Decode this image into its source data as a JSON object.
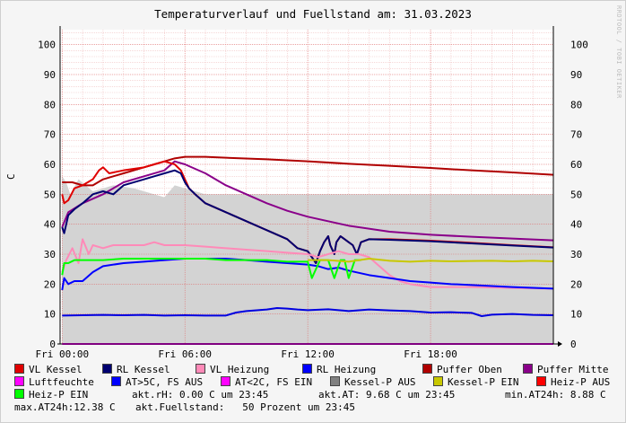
{
  "title": "Temperaturverlauf und Fuellstand am: 31.03.2023",
  "watermark": "RRDTOOL / TOBI OETIKER",
  "chart_data": {
    "type": "line",
    "title": "Temperaturverlauf und Fuellstand am: 31.03.2023",
    "ylabel": "C",
    "ylim": [
      0,
      105
    ],
    "y_ticks": [
      0,
      10,
      20,
      30,
      40,
      50,
      60,
      70,
      80,
      90,
      100
    ],
    "xlim": [
      -0.1,
      24
    ],
    "x_ticks": [
      {
        "t": 0,
        "label": "Fri 00:00"
      },
      {
        "t": 6,
        "label": "Fri 06:00"
      },
      {
        "t": 12,
        "label": "Fri 12:00"
      },
      {
        "t": 18,
        "label": "Fri 18:00"
      }
    ],
    "grid": true,
    "legend_position": "bottom",
    "area": {
      "name": "Fuellstand",
      "color": "#d3d3d3",
      "x": [
        0,
        0.2,
        0.4,
        0.8,
        1.5,
        2.5,
        3.5,
        4.5,
        5,
        5.5,
        6,
        7,
        8,
        10,
        12,
        14,
        16,
        18,
        20,
        22,
        24
      ],
      "values": [
        56,
        54,
        50,
        55,
        51,
        53,
        52,
        50,
        49,
        53,
        52,
        50,
        50,
        50,
        50,
        50,
        50,
        50,
        50,
        50,
        50
      ]
    },
    "series": [
      {
        "name": "Puffer Oben",
        "color": "#b00000",
        "x": [
          0,
          0.5,
          1,
          1.5,
          2,
          2.5,
          3,
          3.5,
          4,
          4.5,
          5,
          5.5,
          6,
          7,
          8,
          10,
          12,
          14,
          16,
          18,
          20,
          22,
          24
        ],
        "values": [
          54,
          54,
          53,
          53,
          55,
          56,
          57,
          58,
          59,
          60,
          61,
          62,
          62.5,
          62.5,
          62.2,
          61.7,
          61,
          60.2,
          59.5,
          58.8,
          58,
          57.3,
          56.5
        ]
      },
      {
        "name": "Puffer Mitte",
        "color": "#8a008a",
        "x": [
          0,
          0.3,
          1,
          2,
          3,
          4,
          5,
          5.5,
          6,
          7,
          8,
          9,
          10,
          11,
          12,
          14,
          16,
          18,
          20,
          22,
          24
        ],
        "values": [
          39,
          44,
          47,
          50,
          54,
          56,
          58,
          61,
          60,
          57,
          53,
          50,
          47,
          44.5,
          42.5,
          39.5,
          37.5,
          36.5,
          35.8,
          35.2,
          34.6
        ]
      },
      {
        "name": "VL Kessel",
        "color": "#e00000",
        "x": [
          0,
          0.1,
          0.3,
          0.6,
          1,
          1.5,
          1.8,
          2,
          2.3,
          3,
          4,
          4.5,
          5,
          5.5,
          5.8,
          6,
          6.2,
          6.5,
          7,
          8,
          9,
          10,
          11,
          11.5,
          12,
          12.2,
          12.4,
          12.6,
          12.8,
          13,
          13.1,
          13.3,
          13.4,
          13.6,
          13.8,
          14,
          14.2,
          14.4,
          14.6,
          15,
          16,
          18,
          20,
          22,
          24
        ],
        "values": [
          50,
          47,
          48,
          52,
          53,
          55,
          58,
          59,
          57,
          58,
          59,
          60,
          61,
          60,
          58,
          55,
          52,
          50,
          47,
          44,
          41,
          38,
          35,
          32,
          31,
          29,
          27,
          31,
          34,
          36,
          33,
          30,
          34,
          36,
          35,
          34,
          33,
          30,
          34,
          35,
          35,
          34.5,
          33.8,
          33,
          32.3
        ]
      },
      {
        "name": "RL Kessel",
        "color": "#000070",
        "x": [
          0,
          0.1,
          0.3,
          0.6,
          1,
          1.5,
          2,
          2.5,
          3,
          4,
          4.5,
          5,
          5.5,
          5.8,
          6,
          6.2,
          6.5,
          7,
          8,
          9,
          10,
          11,
          11.5,
          12,
          12.2,
          12.4,
          12.6,
          12.8,
          13,
          13.1,
          13.3,
          13.4,
          13.6,
          13.8,
          14,
          14.2,
          14.4,
          14.6,
          15,
          16,
          18,
          20,
          22,
          24
        ],
        "values": [
          39,
          37,
          43,
          45,
          47,
          50,
          51,
          50,
          53,
          55,
          56,
          57,
          58,
          57,
          54,
          52,
          50,
          47,
          44,
          41,
          38,
          35,
          32,
          31,
          29,
          27,
          31,
          34,
          36,
          33,
          30,
          34,
          36,
          35,
          34,
          33,
          30,
          34,
          35,
          34.8,
          34.3,
          33.6,
          32.9,
          32.2
        ]
      },
      {
        "name": "VL Heizung",
        "color": "#ff8ab8",
        "x": [
          0,
          0.2,
          0.5,
          0.8,
          1,
          1.3,
          1.5,
          2,
          2.5,
          3,
          3.5,
          4,
          4.5,
          5,
          5.5,
          6,
          7,
          8,
          9,
          10,
          11,
          12,
          12.5,
          13,
          13.5,
          14,
          14.5,
          15,
          15.5,
          16,
          16.5,
          17,
          18,
          20,
          22,
          24
        ],
        "values": [
          24,
          28,
          32,
          27,
          35,
          30,
          33,
          32,
          33,
          33,
          33,
          33,
          34,
          33,
          33,
          33,
          32.5,
          32,
          31.5,
          31,
          30.5,
          30,
          29,
          30,
          31,
          30,
          30,
          29,
          26,
          23,
          21,
          20,
          19,
          19,
          18.7,
          18.5
        ]
      },
      {
        "name": "RL Heizung",
        "color": "#0000ff",
        "x": [
          0,
          0.1,
          0.3,
          0.6,
          1,
          1.5,
          2,
          3,
          4,
          5,
          6,
          7,
          8,
          9,
          10,
          11,
          12,
          12.5,
          13,
          13.5,
          14,
          15,
          16,
          17,
          18,
          19,
          20,
          22,
          24
        ],
        "values": [
          18,
          22,
          20,
          21,
          21,
          24,
          26,
          27,
          27.5,
          28,
          28.5,
          28.5,
          28.5,
          28,
          27.5,
          27,
          26.5,
          26,
          25,
          25.5,
          24.5,
          23,
          22,
          21,
          20.5,
          20,
          19.7,
          19,
          18.5
        ]
      },
      {
        "name": "Luftfeuchte",
        "color": "#ff00ff",
        "x": [
          0,
          24
        ],
        "values": [
          0,
          0
        ]
      },
      {
        "name": "Heiz-P EIN",
        "color": "#00ff00",
        "x": [
          0,
          0.1,
          0.3,
          0.6,
          1,
          2,
          3,
          4,
          5,
          6,
          7,
          8,
          9,
          10,
          11,
          12,
          12.2,
          12.6,
          13,
          13.3,
          13.6,
          13.8,
          14,
          14.3,
          14.6
        ],
        "values": [
          23,
          27,
          27,
          28,
          28,
          28,
          28.5,
          28.5,
          28.5,
          28.5,
          28.5,
          28,
          28,
          28,
          27.5,
          27.5,
          22,
          28,
          28,
          22,
          28,
          28,
          22,
          28,
          28
        ]
      },
      {
        "name": "Kessel-P EIN",
        "color": "#c8c800",
        "x": [
          12,
          13,
          14,
          15,
          16,
          17,
          18,
          19,
          20,
          21,
          22,
          23,
          24
        ],
        "values": [
          28,
          28,
          27.5,
          28.5,
          27.8,
          27.5,
          27.8,
          27.6,
          27.7,
          27.8,
          27.6,
          27.8,
          27.6
        ]
      },
      {
        "name": "AT",
        "color": "#0000e0",
        "x": [
          0,
          1,
          2,
          3,
          4,
          5,
          6,
          7,
          8,
          8.5,
          9,
          10,
          10.5,
          11,
          11.5,
          12,
          13,
          14,
          15,
          16,
          17,
          18,
          19,
          20,
          20.5,
          21,
          22,
          23,
          24
        ],
        "values": [
          9.5,
          9.6,
          9.7,
          9.6,
          9.7,
          9.5,
          9.6,
          9.5,
          9.5,
          10.5,
          11,
          11.5,
          12,
          11.8,
          11.5,
          11.3,
          11.6,
          11,
          11.5,
          11.2,
          11,
          10.5,
          10.6,
          10.4,
          9.3,
          9.8,
          10,
          9.7,
          9.6
        ]
      }
    ]
  },
  "legend": [
    {
      "label": "VL Kessel",
      "color": "#e00000"
    },
    {
      "label": "RL Kessel",
      "color": "#000070"
    },
    {
      "label": "VL Heizung",
      "color": "#ff8ab8"
    },
    {
      "label": "RL Heizung",
      "color": "#0000ff"
    },
    {
      "label": "Puffer Oben",
      "color": "#b00000"
    },
    {
      "label": "Puffer Mitte",
      "color": "#8a008a"
    },
    {
      "label": "Luftfeuchte",
      "color": "#ff00ff"
    },
    {
      "label": "AT>5C, FS AUS",
      "color": "#0000ff"
    },
    {
      "label": "AT<2C, FS EIN",
      "color": "#ff00ff"
    },
    {
      "label": "Kessel-P AUS",
      "color": "#808080"
    },
    {
      "label": "Kessel-P EIN",
      "color": "#c8c800"
    },
    {
      "label": "Heiz-P AUS",
      "color": "#ff0000"
    },
    {
      "label": "Heiz-P EIN",
      "color": "#00ff00"
    }
  ],
  "stats": {
    "rh": "akt.rH: 0.00 C um 23:45",
    "at": "akt.AT: 9.68 C um 23:45",
    "min": "min.AT24h: 8.88 C",
    "max": "max.AT24h:12.38 C",
    "fuell": "akt.Fuellstand:   50 Prozent um 23:45"
  }
}
